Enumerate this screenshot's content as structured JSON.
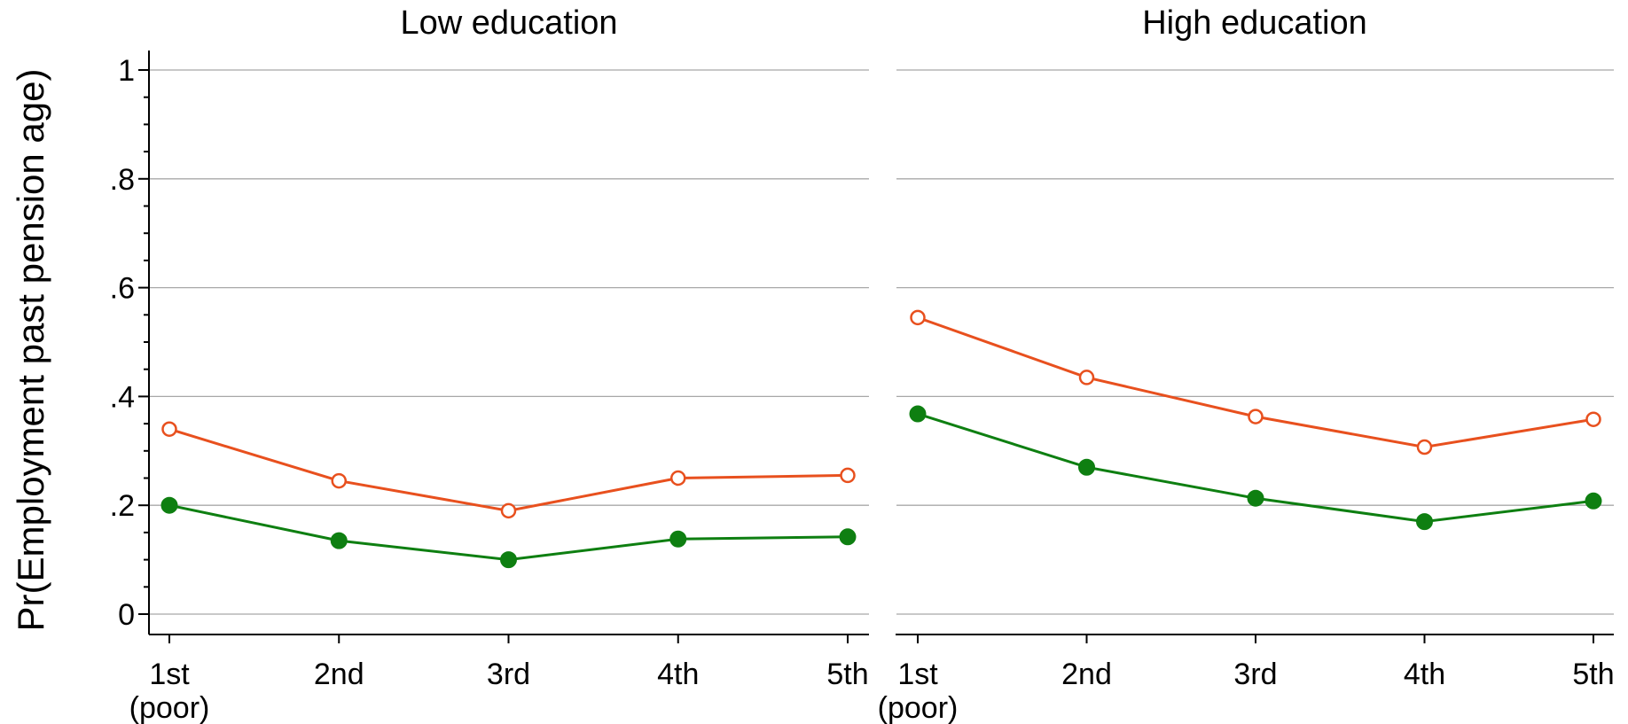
{
  "chart_data": {
    "type": "line",
    "ylabel": "Pr(Employment past pension age)",
    "ylim": [
      0,
      1
    ],
    "yticks": [
      {
        "value": 0,
        "label": "0"
      },
      {
        "value": 0.2,
        "label": ".2"
      },
      {
        "value": 0.4,
        "label": ".4"
      },
      {
        "value": 0.6,
        "label": ".6"
      },
      {
        "value": 0.8,
        "label": ".8"
      },
      {
        "value": 1,
        "label": "1"
      }
    ],
    "grid": true,
    "categories": [
      {
        "label": "1st",
        "sublabel": "(poor)"
      },
      {
        "label": "2nd",
        "sublabel": ""
      },
      {
        "label": "3rd",
        "sublabel": ""
      },
      {
        "label": "4th",
        "sublabel": ""
      },
      {
        "label": "5th",
        "sublabel": ""
      }
    ],
    "series_styles": [
      {
        "color": "#e8501e",
        "marker": "hollow-circle"
      },
      {
        "color": "#0e7f11",
        "marker": "filled-circle"
      }
    ],
    "panels": [
      {
        "title": "Low education",
        "series": [
          {
            "values": [
              0.34,
              0.245,
              0.19,
              0.25,
              0.255
            ]
          },
          {
            "values": [
              0.2,
              0.135,
              0.1,
              0.138,
              0.142
            ]
          }
        ]
      },
      {
        "title": "High education",
        "series": [
          {
            "values": [
              0.545,
              0.435,
              0.363,
              0.307,
              0.358
            ]
          },
          {
            "values": [
              0.368,
              0.27,
              0.213,
              0.17,
              0.208
            ]
          }
        ]
      }
    ]
  }
}
